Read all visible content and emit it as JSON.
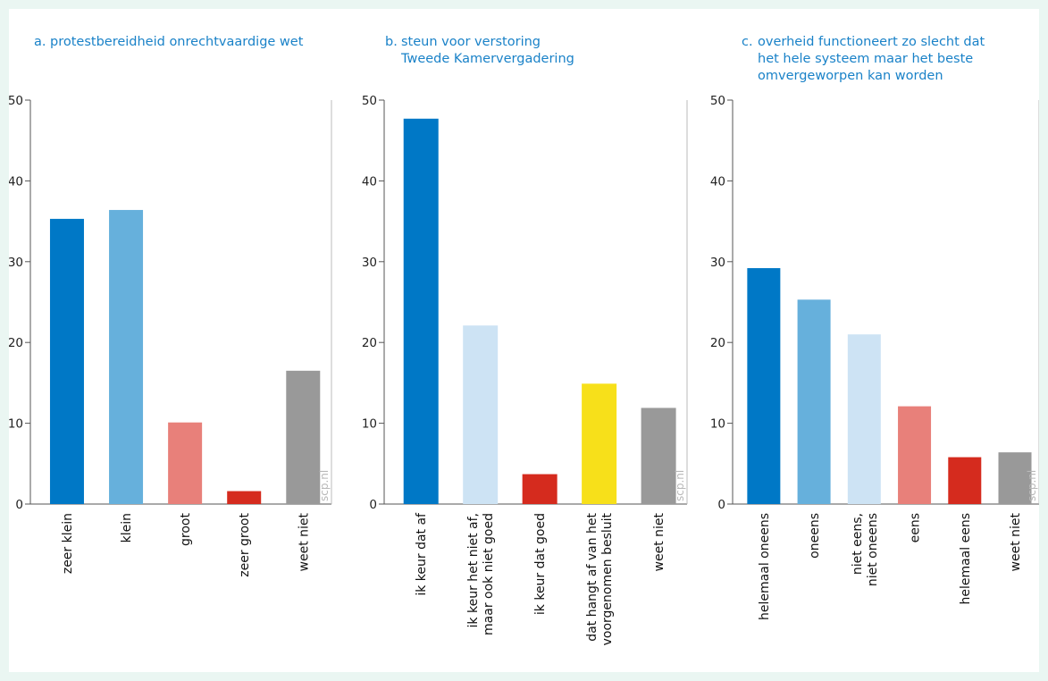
{
  "watermark": "scp.nl",
  "chart_data": [
    {
      "type": "bar",
      "letter": "a.",
      "title_lines": [
        "protestbereidheid onrechtvaardige wet"
      ],
      "ylim": [
        0,
        50
      ],
      "yticks": [
        0,
        10,
        20,
        30,
        40,
        50
      ],
      "grid": false,
      "categories": [
        [
          "zeer klein"
        ],
        [
          "klein"
        ],
        [
          "groot"
        ],
        [
          "zeer groot"
        ],
        [
          "weet niet"
        ]
      ],
      "values": [
        35.3,
        36.4,
        10.1,
        1.6,
        16.5
      ],
      "colors": [
        "#0078c6",
        "#66b0dc",
        "#e8807a",
        "#d52b1e",
        "#999999"
      ]
    },
    {
      "type": "bar",
      "letter": "b.",
      "title_lines": [
        "steun voor verstoring",
        "Tweede Kamervergadering"
      ],
      "ylim": [
        0,
        50
      ],
      "yticks": [
        0,
        10,
        20,
        30,
        40,
        50
      ],
      "grid": false,
      "categories": [
        [
          "ik keur dat af"
        ],
        [
          "ik keur het niet af,",
          "maar ook niet goed"
        ],
        [
          "ik keur dat goed"
        ],
        [
          "dat hangt af van het",
          "voorgenomen besluit"
        ],
        [
          "weet niet"
        ]
      ],
      "values": [
        47.7,
        22.1,
        3.7,
        14.9,
        11.9
      ],
      "colors": [
        "#0078c6",
        "#cde3f4",
        "#d52b1e",
        "#f7e01a",
        "#999999"
      ]
    },
    {
      "type": "bar",
      "letter": "c.",
      "title_lines": [
        "overheid functioneert zo slecht dat",
        "het hele systeem maar het beste",
        "omvergeworpen kan worden"
      ],
      "ylim": [
        0,
        50
      ],
      "yticks": [
        0,
        10,
        20,
        30,
        40,
        50
      ],
      "grid": false,
      "categories": [
        [
          "helemaal oneens"
        ],
        [
          "oneens"
        ],
        [
          "niet eens,",
          "niet oneens"
        ],
        [
          "eens"
        ],
        [
          "helemaal eens"
        ],
        [
          "weet niet"
        ]
      ],
      "values": [
        29.2,
        25.3,
        21.0,
        12.1,
        5.8,
        6.4
      ],
      "colors": [
        "#0078c6",
        "#66b0dc",
        "#cde3f4",
        "#e8807a",
        "#d52b1e",
        "#999999"
      ]
    }
  ]
}
